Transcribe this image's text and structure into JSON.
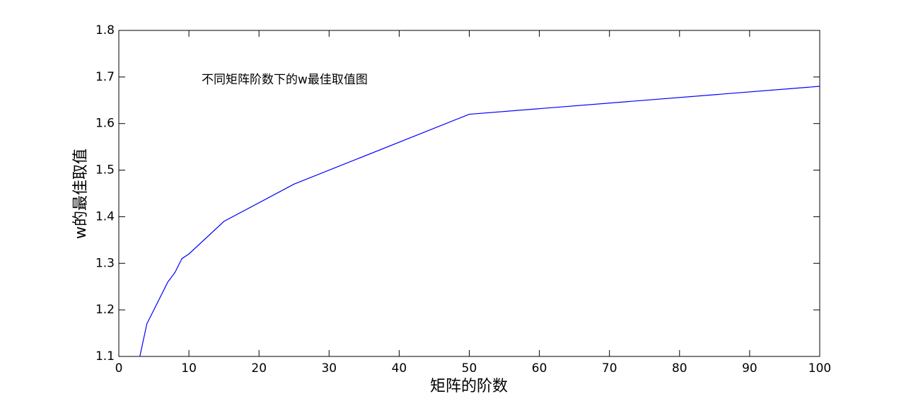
{
  "chart_data": {
    "type": "line",
    "annotation": "不同矩阵阶数下的w最佳取值图",
    "xlabel": "矩阵的阶数",
    "ylabel": "w的最佳取值",
    "x": [
      3,
      4,
      7,
      8,
      9,
      10,
      15,
      25,
      50,
      100
    ],
    "values": [
      1.1,
      1.17,
      1.26,
      1.28,
      1.31,
      1.32,
      1.39,
      1.47,
      1.62,
      1.68
    ],
    "color": "#0000ff",
    "xlim": [
      0,
      100
    ],
    "xticks": [
      0,
      10,
      20,
      30,
      40,
      50,
      60,
      70,
      80,
      90,
      100
    ],
    "ylim": [
      1.1,
      1.8
    ],
    "yticks": [
      1.1,
      1.2,
      1.3,
      1.4,
      1.5,
      1.6,
      1.7,
      1.8
    ],
    "grid": false
  }
}
